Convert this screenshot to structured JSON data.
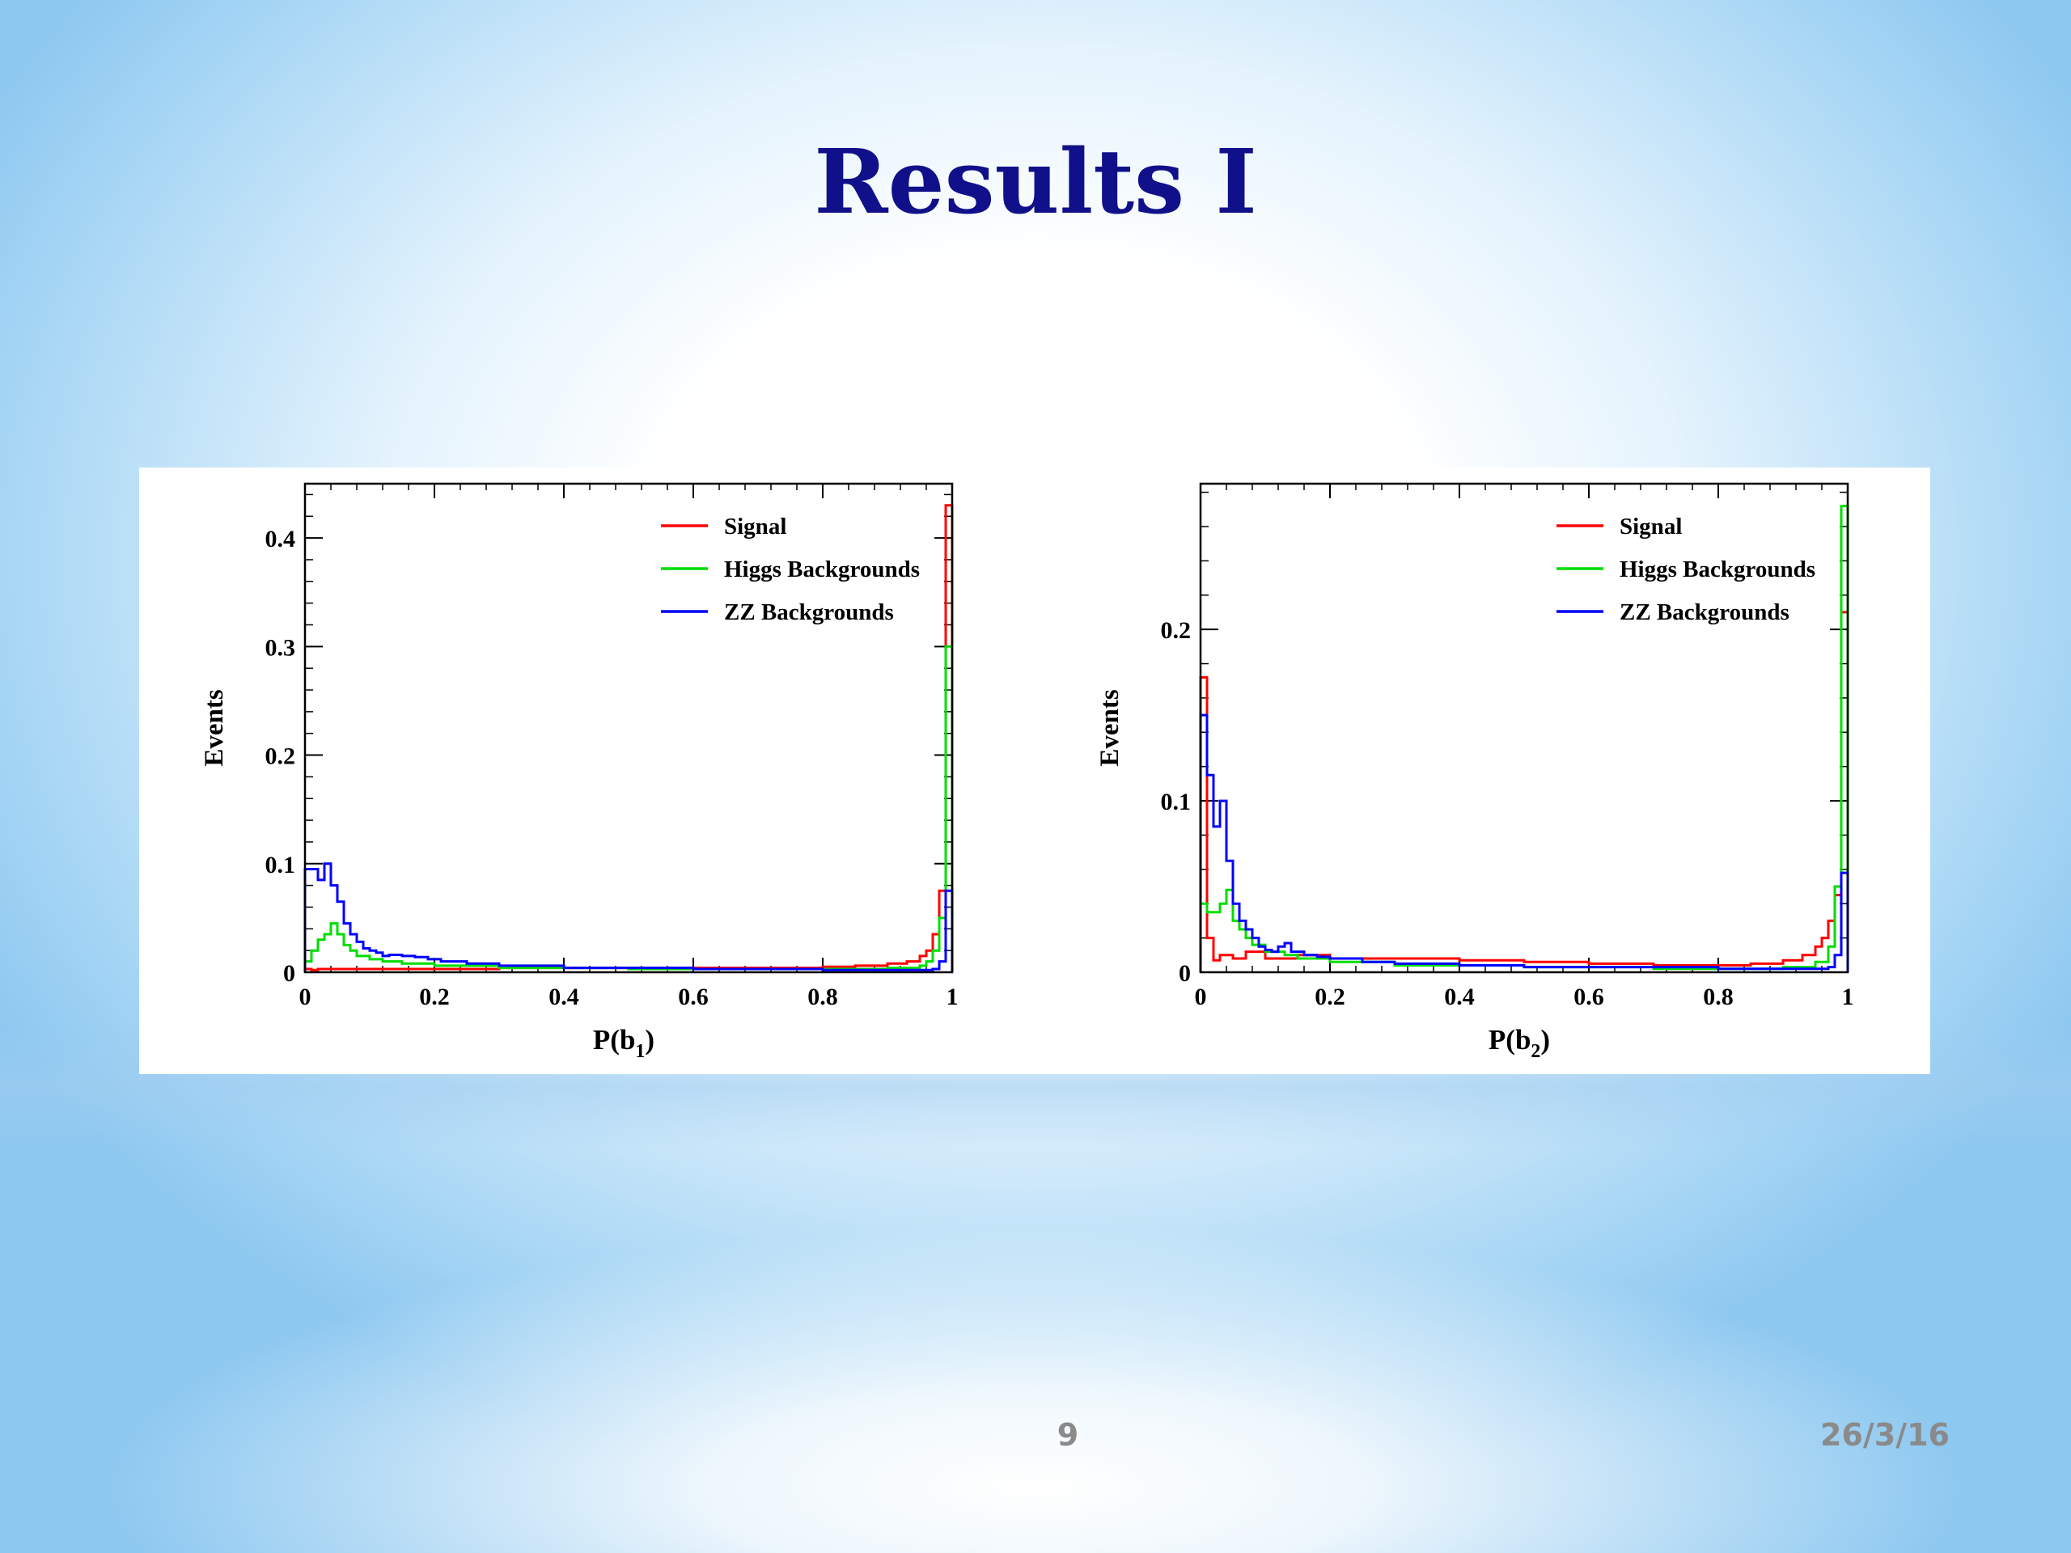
{
  "slide": {
    "title": "Results I",
    "page_number": "9",
    "date": "26/3/16"
  },
  "chart_data": [
    {
      "type": "line",
      "step": true,
      "title": "",
      "xlabel": "P(b",
      "xlabel_sub": "1",
      "xlabel_tail": ")",
      "ylabel": "Events",
      "xlim": [
        0,
        1
      ],
      "ylim": [
        0,
        0.45
      ],
      "xticks": [
        0,
        0.2,
        0.4,
        0.6,
        0.8,
        1
      ],
      "xtick_labels": [
        "0",
        "0.2",
        "0.4",
        "0.6",
        "0.8",
        "1"
      ],
      "yticks": [
        0,
        0.1,
        0.2,
        0.3,
        0.4
      ],
      "ytick_labels": [
        "0",
        "0.1",
        "0.2",
        "0.3",
        "0.4"
      ],
      "legend_position": "top-right",
      "bin_width": 0.01,
      "series": [
        {
          "name": "Signal",
          "color": "#ff0000",
          "x": [
            0,
            0.01,
            0.02,
            0.05,
            0.1,
            0.3,
            0.5,
            0.6,
            0.7,
            0.8,
            0.85,
            0.9,
            0.93,
            0.95,
            0.96,
            0.97,
            0.98,
            0.99
          ],
          "y": [
            0.003,
            0.002,
            0.003,
            0.003,
            0.003,
            0.004,
            0.004,
            0.004,
            0.004,
            0.005,
            0.006,
            0.008,
            0.01,
            0.015,
            0.02,
            0.035,
            0.075,
            0.43
          ]
        },
        {
          "name": "Higgs Backgrounds",
          "color": "#00dd00",
          "x": [
            0,
            0.01,
            0.02,
            0.03,
            0.04,
            0.05,
            0.06,
            0.07,
            0.08,
            0.1,
            0.12,
            0.15,
            0.2,
            0.3,
            0.5,
            0.7,
            0.9,
            0.95,
            0.96,
            0.97,
            0.98,
            0.99
          ],
          "y": [
            0.01,
            0.02,
            0.03,
            0.035,
            0.045,
            0.035,
            0.025,
            0.02,
            0.015,
            0.012,
            0.01,
            0.008,
            0.006,
            0.004,
            0.003,
            0.003,
            0.004,
            0.006,
            0.01,
            0.02,
            0.05,
            0.3
          ]
        },
        {
          "name": "ZZ Backgrounds",
          "color": "#0000ff",
          "x": [
            0,
            0.01,
            0.02,
            0.03,
            0.04,
            0.05,
            0.06,
            0.07,
            0.08,
            0.09,
            0.1,
            0.11,
            0.12,
            0.13,
            0.15,
            0.17,
            0.19,
            0.21,
            0.25,
            0.3,
            0.4,
            0.6,
            0.8,
            0.9,
            0.95,
            0.97,
            0.98,
            0.99
          ],
          "y": [
            0.095,
            0.095,
            0.085,
            0.1,
            0.08,
            0.065,
            0.045,
            0.035,
            0.028,
            0.022,
            0.02,
            0.018,
            0.015,
            0.016,
            0.015,
            0.014,
            0.012,
            0.01,
            0.008,
            0.006,
            0.004,
            0.003,
            0.002,
            0.002,
            0.002,
            0.003,
            0.01,
            0.075
          ]
        }
      ]
    },
    {
      "type": "line",
      "step": true,
      "title": "",
      "xlabel": "P(b",
      "xlabel_sub": "2",
      "xlabel_tail": ")",
      "ylabel": "Events",
      "xlim": [
        0,
        1
      ],
      "ylim": [
        0,
        0.285
      ],
      "xticks": [
        0,
        0.2,
        0.4,
        0.6,
        0.8,
        1
      ],
      "xtick_labels": [
        "0",
        "0.2",
        "0.4",
        "0.6",
        "0.8",
        "1"
      ],
      "yticks": [
        0,
        0.1,
        0.2
      ],
      "ytick_labels": [
        "0",
        "0.1",
        "0.2"
      ],
      "legend_position": "top-right",
      "bin_width": 0.01,
      "series": [
        {
          "name": "Signal",
          "color": "#ff0000",
          "x": [
            0,
            0.01,
            0.02,
            0.03,
            0.05,
            0.07,
            0.1,
            0.15,
            0.2,
            0.25,
            0.3,
            0.4,
            0.5,
            0.6,
            0.7,
            0.8,
            0.85,
            0.9,
            0.93,
            0.95,
            0.96,
            0.97,
            0.98,
            0.99
          ],
          "y": [
            0.172,
            0.02,
            0.007,
            0.01,
            0.008,
            0.012,
            0.008,
            0.01,
            0.008,
            0.008,
            0.008,
            0.007,
            0.006,
            0.005,
            0.004,
            0.004,
            0.005,
            0.007,
            0.01,
            0.015,
            0.02,
            0.03,
            0.045,
            0.21
          ]
        },
        {
          "name": "Higgs Backgrounds",
          "color": "#00dd00",
          "x": [
            0,
            0.01,
            0.02,
            0.03,
            0.04,
            0.05,
            0.06,
            0.07,
            0.08,
            0.1,
            0.13,
            0.15,
            0.2,
            0.3,
            0.5,
            0.7,
            0.9,
            0.95,
            0.97,
            0.98,
            0.99
          ],
          "y": [
            0.04,
            0.035,
            0.035,
            0.04,
            0.048,
            0.03,
            0.025,
            0.02,
            0.016,
            0.012,
            0.01,
            0.008,
            0.006,
            0.004,
            0.003,
            0.002,
            0.003,
            0.006,
            0.015,
            0.05,
            0.272
          ]
        },
        {
          "name": "ZZ Backgrounds",
          "color": "#0000ff",
          "x": [
            0,
            0.01,
            0.02,
            0.03,
            0.04,
            0.05,
            0.06,
            0.07,
            0.08,
            0.09,
            0.1,
            0.11,
            0.12,
            0.13,
            0.14,
            0.16,
            0.18,
            0.2,
            0.25,
            0.3,
            0.4,
            0.5,
            0.6,
            0.8,
            0.9,
            0.95,
            0.97,
            0.98,
            0.99
          ],
          "y": [
            0.15,
            0.115,
            0.085,
            0.1,
            0.065,
            0.04,
            0.03,
            0.025,
            0.02,
            0.015,
            0.013,
            0.012,
            0.015,
            0.017,
            0.012,
            0.01,
            0.009,
            0.008,
            0.006,
            0.005,
            0.004,
            0.003,
            0.003,
            0.002,
            0.002,
            0.002,
            0.003,
            0.01,
            0.058
          ]
        }
      ]
    }
  ]
}
